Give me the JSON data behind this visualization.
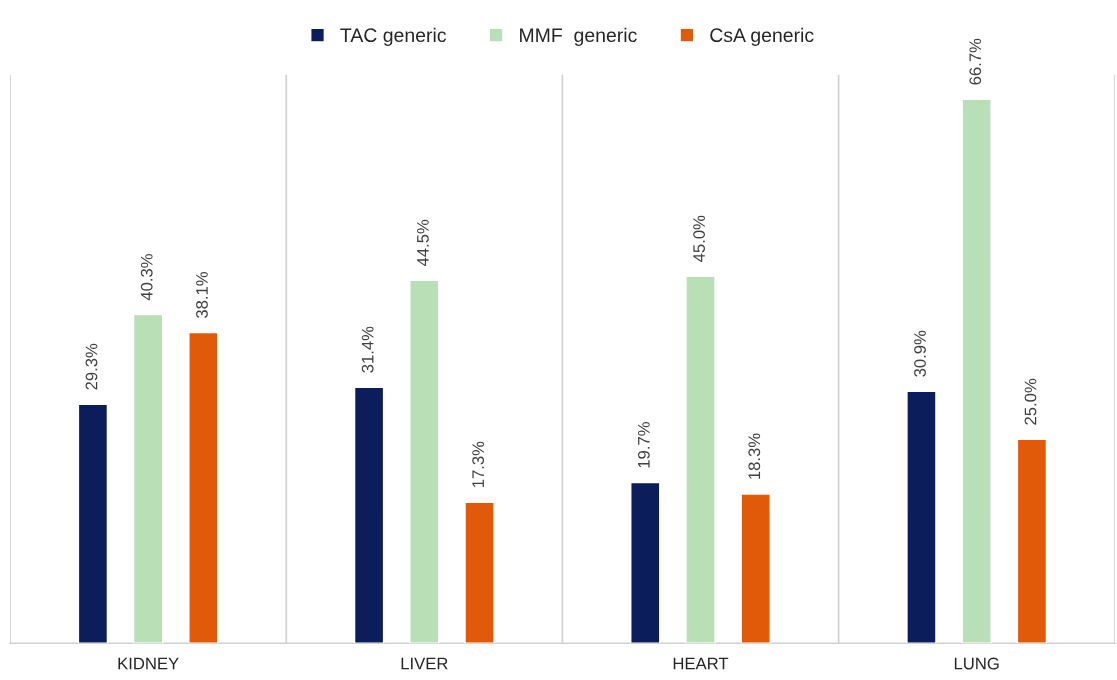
{
  "chart_data": {
    "type": "bar",
    "categories": [
      "KIDNEY",
      "LIVER",
      "HEART",
      "LUNG"
    ],
    "series": [
      {
        "name": "TAC generic",
        "color": "#0b1e5b",
        "values": [
          29.3,
          31.4,
          19.7,
          30.9
        ],
        "value_labels": [
          "29.3%",
          "31.4%",
          "19.7%",
          "30.9%"
        ]
      },
      {
        "name": "MMF  generic",
        "color": "#b8dfb5",
        "values": [
          40.3,
          44.5,
          45.0,
          66.7
        ],
        "value_labels": [
          "40.3%",
          "44.5%",
          "45.0%",
          "66.7%"
        ]
      },
      {
        "name": "CsA generic",
        "color": "#e05a0a",
        "values": [
          38.1,
          17.3,
          18.3,
          25.0
        ],
        "value_labels": [
          "38.1%",
          "17.3%",
          "18.3%",
          "25.0%"
        ]
      }
    ],
    "grid": "x",
    "legend": "top",
    "tick_labels": "x"
  }
}
